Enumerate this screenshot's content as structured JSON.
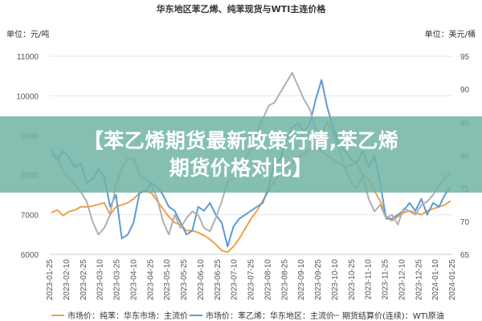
{
  "banner": {
    "line1": "【苯乙烯期货最新政策行情,苯乙烯",
    "line2": "期货价格对比】"
  },
  "chart_data": {
    "type": "line",
    "title": "华东地区苯乙烯、纯苯现货与WTI主连价格",
    "left_unit": "单位：元/吨",
    "right_unit": "单位：美元/桶",
    "y_left": {
      "min": 6000,
      "max": 11000,
      "ticks": [
        "11000",
        "10000",
        "9000",
        "8000",
        "7000",
        "6000"
      ]
    },
    "y_right": {
      "min": 65,
      "max": 95,
      "ticks": [
        "95",
        "90",
        "85",
        "80",
        "75",
        "70",
        "65"
      ]
    },
    "x_ticks": [
      "2023-01-25",
      "2023-02-10",
      "2023-02-25",
      "2023-03-10",
      "2023-03-25",
      "2023-04-10",
      "2023-04-25",
      "2023-05-10",
      "2023-05-25",
      "2023-06-10",
      "2023-06-25",
      "2023-07-10",
      "2023-07-25",
      "2023-08-10",
      "2023-08-25",
      "2023-09-10",
      "2023-09-25",
      "2023-10-10",
      "2023-10-25",
      "2023-11-10",
      "2023-11-25",
      "2023-12-10",
      "2023-12-25",
      "2024-01-10",
      "2024-01-25"
    ],
    "legend_position": "bottom",
    "series": [
      {
        "name": "市场价：纯苯：华东市场：主流价",
        "axis": "left",
        "color": "#f0a048",
        "values": [
          7050,
          7120,
          6980,
          7080,
          7120,
          7200,
          7200,
          7220,
          7260,
          7300,
          7000,
          7200,
          7250,
          7300,
          7400,
          7550,
          7600,
          7550,
          7350,
          7150,
          6950,
          6800,
          6750,
          6600,
          6600,
          6550,
          6480,
          6380,
          6250,
          6100,
          6050,
          6200,
          6400,
          6650,
          6900,
          7100,
          7350,
          7600,
          7850,
          8050,
          8200,
          8300,
          8450,
          8550,
          8650,
          8700,
          8600,
          8500,
          8400,
          8300,
          8200,
          8250,
          8300,
          8000,
          7900,
          7600,
          7350,
          6950,
          6850,
          6950,
          7050,
          7100,
          7050,
          7000,
          7100,
          7150,
          7200,
          7250,
          7350
        ]
      },
      {
        "name": "市场价：苯乙烯：华东地区：主流价",
        "axis": "left",
        "color": "#5b9bd5",
        "values": [
          8550,
          8400,
          8600,
          8450,
          8200,
          8300,
          7800,
          7900,
          8150,
          7950,
          7200,
          7500,
          6400,
          6500,
          6800,
          7550,
          7600,
          7800,
          7700,
          7500,
          7200,
          7100,
          6800,
          6500,
          6600,
          7200,
          7100,
          7300,
          7000,
          6800,
          6200,
          6700,
          6900,
          7000,
          7100,
          7200,
          7300,
          7700,
          8300,
          8400,
          8900,
          9200,
          9300,
          9100,
          9300,
          9900,
          10400,
          9700,
          9200,
          8800,
          8600,
          8400,
          8300,
          8600,
          8200,
          8500,
          7800,
          6900,
          6900,
          7000,
          7100,
          7300,
          7100,
          7400,
          7000,
          7300,
          7200,
          7500,
          7700
        ]
      },
      {
        "name": "期货结算价(连续)：WTI原油",
        "axis": "right",
        "color": "#b0b0b0",
        "values": [
          81,
          79.5,
          77.5,
          76.5,
          75.5,
          74.5,
          73,
          70,
          68,
          69,
          71,
          75.5,
          78,
          79.5,
          79.5,
          77,
          76.5,
          75.5,
          73.5,
          70,
          68,
          71,
          69,
          70.5,
          71.5,
          71,
          69,
          68.5,
          70.5,
          73,
          76,
          76.5,
          78,
          79.5,
          81,
          83.5,
          85.5,
          87.5,
          88,
          89.5,
          91,
          92.5,
          90.5,
          88.5,
          87,
          84,
          83,
          85,
          83.5,
          81,
          78,
          76,
          75,
          77,
          73.5,
          71.5,
          72.5,
          70.5,
          71,
          69.5,
          72,
          71.5,
          71,
          72.5,
          73,
          74,
          75.5,
          76.5,
          77.5
        ]
      }
    ]
  }
}
